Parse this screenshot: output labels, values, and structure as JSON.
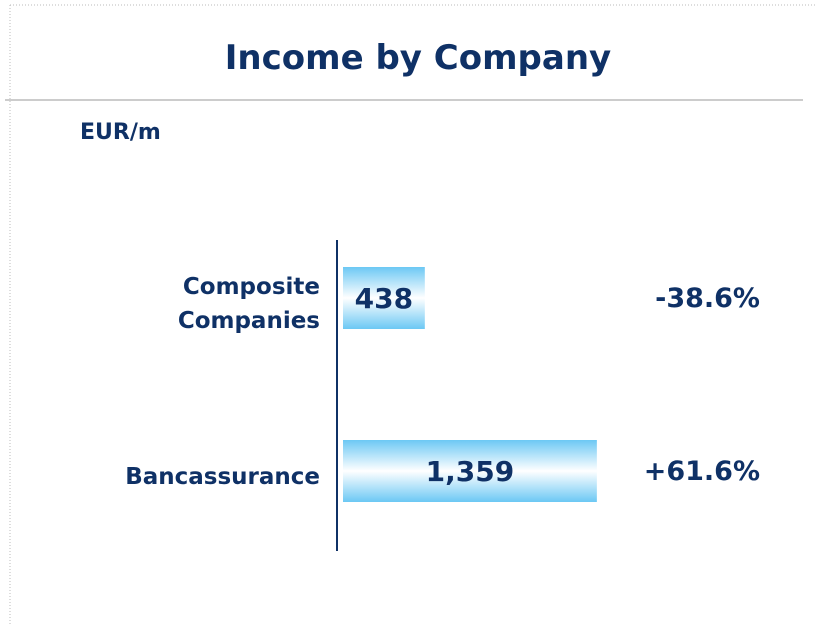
{
  "chart_data": {
    "type": "bar",
    "orientation": "horizontal",
    "title": "Income by Company",
    "subtitle": "EUR/m",
    "categories": [
      "Composite Companies",
      "Bancassurance"
    ],
    "values": [
      438,
      1359
    ],
    "value_labels": [
      "438",
      "1,359"
    ],
    "annotations": [
      "-38.6%",
      "+61.6%"
    ],
    "color": "#6cc8f4"
  }
}
